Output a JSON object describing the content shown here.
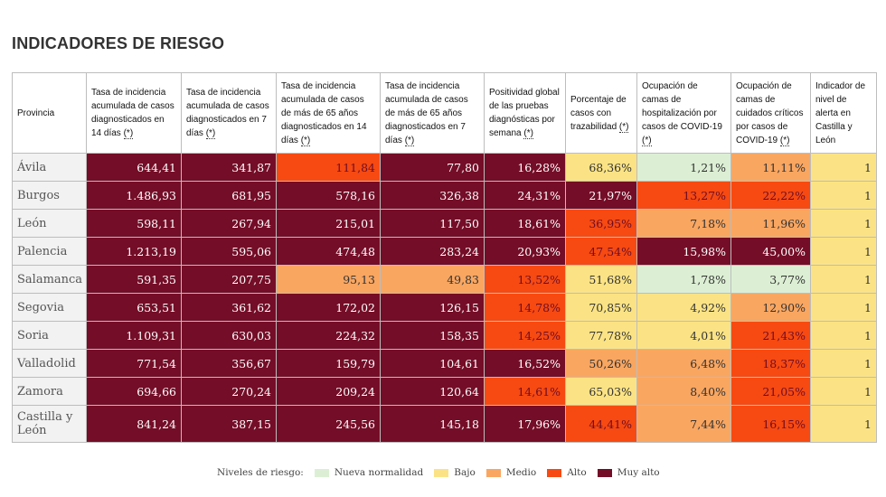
{
  "title": "INDICADORES DE RIESGO",
  "colors": {
    "nueva_normalidad": "#dcefd4",
    "bajo": "#fbe385",
    "medio": "#f9a661",
    "alto": "#f64a12",
    "muy_alto": "#740d27"
  },
  "headers": [
    {
      "text": "Provincia",
      "ast": ""
    },
    {
      "text": "Tasa de incidencia acumulada de casos diagnosticados en 14 días ",
      "ast": "(*)"
    },
    {
      "text": "Tasa de incidencia acumulada de casos diagnosticados en 7 días ",
      "ast": "(*)"
    },
    {
      "text": "Tasa de incidencia acumulada de casos de más de 65 años diagnosticados en 14 días ",
      "ast": "(*)"
    },
    {
      "text": "Tasa de incidencia acumulada de casos de más de 65 años diagnosticados en 7 días ",
      "ast": "(*)"
    },
    {
      "text": "Positividad global de las pruebas diagnósticas por semana ",
      "ast": "(*)"
    },
    {
      "text": "Porcentaje de casos con trazabilidad ",
      "ast": "(*)"
    },
    {
      "text": "Ocupación de camas de hospitalización por casos de COVID-19 ",
      "ast": "(*)"
    },
    {
      "text": "Ocupación de camas de cuidados críticos por casos de COVID-19 ",
      "ast": "(*)"
    },
    {
      "text": "Indicador de nivel de alerta en Castilla y León",
      "ast": ""
    }
  ],
  "rows": [
    {
      "provincia": "Ávila",
      "values": [
        "644,41",
        "341,87",
        "111,84",
        "77,80",
        "16,28%",
        "68,36%",
        "1,21%",
        "11,11%",
        "1"
      ],
      "levels": [
        "muyalto",
        "muyalto",
        "alto",
        "muyalto",
        "muyalto",
        "bajo",
        "nueva",
        "medio",
        "bajo"
      ]
    },
    {
      "provincia": "Burgos",
      "values": [
        "1.486,93",
        "681,95",
        "578,16",
        "326,38",
        "24,31%",
        "21,97%",
        "13,27%",
        "22,22%",
        "1"
      ],
      "levels": [
        "muyalto",
        "muyalto",
        "muyalto",
        "muyalto",
        "muyalto",
        "muyalto",
        "alto",
        "alto",
        "bajo"
      ]
    },
    {
      "provincia": "León",
      "values": [
        "598,11",
        "267,94",
        "215,01",
        "117,50",
        "18,61%",
        "36,95%",
        "7,18%",
        "11,96%",
        "1"
      ],
      "levels": [
        "muyalto",
        "muyalto",
        "muyalto",
        "muyalto",
        "muyalto",
        "alto",
        "medio",
        "medio",
        "bajo"
      ]
    },
    {
      "provincia": "Palencia",
      "values": [
        "1.213,19",
        "595,06",
        "474,48",
        "283,24",
        "20,93%",
        "47,54%",
        "15,98%",
        "45,00%",
        "1"
      ],
      "levels": [
        "muyalto",
        "muyalto",
        "muyalto",
        "muyalto",
        "muyalto",
        "alto",
        "muyalto",
        "muyalto",
        "bajo"
      ]
    },
    {
      "provincia": "Salamanca",
      "values": [
        "591,35",
        "207,75",
        "95,13",
        "49,83",
        "13,52%",
        "51,68%",
        "1,78%",
        "3,77%",
        "1"
      ],
      "levels": [
        "muyalto",
        "muyalto",
        "medio",
        "medio",
        "alto",
        "bajo",
        "nueva",
        "nueva",
        "bajo"
      ]
    },
    {
      "provincia": "Segovia",
      "values": [
        "653,51",
        "361,62",
        "172,02",
        "126,15",
        "14,78%",
        "70,85%",
        "4,92%",
        "12,90%",
        "1"
      ],
      "levels": [
        "muyalto",
        "muyalto",
        "muyalto",
        "muyalto",
        "alto",
        "bajo",
        "bajo",
        "medio",
        "bajo"
      ]
    },
    {
      "provincia": "Soria",
      "values": [
        "1.109,31",
        "630,03",
        "224,32",
        "158,35",
        "14,25%",
        "77,78%",
        "4,01%",
        "21,43%",
        "1"
      ],
      "levels": [
        "muyalto",
        "muyalto",
        "muyalto",
        "muyalto",
        "alto",
        "bajo",
        "bajo",
        "alto",
        "bajo"
      ]
    },
    {
      "provincia": "Valladolid",
      "values": [
        "771,54",
        "356,67",
        "159,79",
        "104,61",
        "16,52%",
        "50,26%",
        "6,48%",
        "18,37%",
        "1"
      ],
      "levels": [
        "muyalto",
        "muyalto",
        "muyalto",
        "muyalto",
        "muyalto",
        "medio",
        "medio",
        "alto",
        "bajo"
      ]
    },
    {
      "provincia": "Zamora",
      "values": [
        "694,66",
        "270,24",
        "209,24",
        "120,64",
        "14,61%",
        "65,03%",
        "8,40%",
        "21,05%",
        "1"
      ],
      "levels": [
        "muyalto",
        "muyalto",
        "muyalto",
        "muyalto",
        "alto",
        "bajo",
        "medio",
        "alto",
        "bajo"
      ]
    },
    {
      "provincia": "Castilla y León",
      "values": [
        "841,24",
        "387,15",
        "245,56",
        "145,18",
        "17,96%",
        "44,41%",
        "7,44%",
        "16,15%",
        "1"
      ],
      "levels": [
        "muyalto",
        "muyalto",
        "muyalto",
        "muyalto",
        "muyalto",
        "alto",
        "medio",
        "alto",
        "bajo"
      ]
    }
  ],
  "legend": {
    "title": "Niveles de riesgo:",
    "items": [
      {
        "label": "Nueva normalidad",
        "level": "nueva_normalidad"
      },
      {
        "label": "Bajo",
        "level": "bajo"
      },
      {
        "label": "Medio",
        "level": "medio"
      },
      {
        "label": "Alto",
        "level": "alto"
      },
      {
        "label": "Muy alto",
        "level": "muy_alto"
      }
    ]
  }
}
